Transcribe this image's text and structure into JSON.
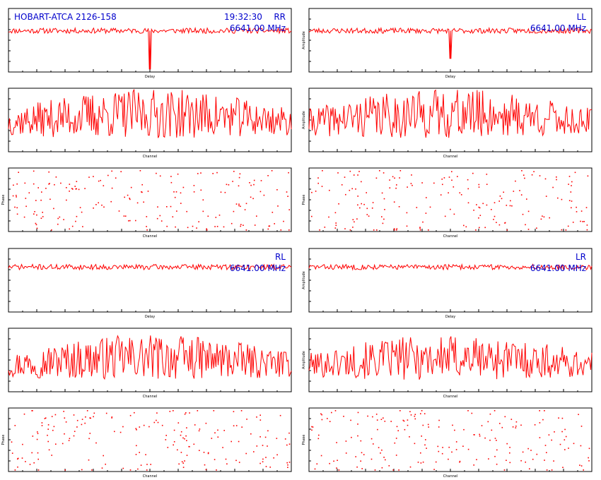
{
  "header": {
    "source": "HOBART-ATCA 2126-158",
    "time": "19:32:30",
    "frequency": "6641.00 MHz"
  },
  "colors": {
    "trace": "#ff0000",
    "overlay_text": "#0000cc",
    "axes": "#000000"
  },
  "chart_data": [
    {
      "id": "rr-delay",
      "type": "line",
      "pol": "RR",
      "xlabel": "Delay",
      "ylabel": "",
      "ylim": [
        0,
        1.2
      ],
      "baseline": 0.78,
      "noise": 0.05,
      "spike": {
        "x": 0.5,
        "y": 0.05
      },
      "seed": 11
    },
    {
      "id": "ll-delay",
      "type": "line",
      "pol": "LL",
      "xlabel": "Delay",
      "ylabel": "Amplitude",
      "ylim": [
        0,
        1.2
      ],
      "baseline": 0.78,
      "noise": 0.05,
      "spike": {
        "x": 0.5,
        "y": 0.25
      },
      "seed": 23
    },
    {
      "id": "rr-channel",
      "type": "line",
      "xlabel": "Channel",
      "ylabel": "",
      "ylim": [
        0,
        3.2
      ],
      "baseline": 1.0,
      "noise": 0.55,
      "seed": 37
    },
    {
      "id": "ll-channel",
      "type": "line",
      "xlabel": "Channel",
      "ylabel": "Amplitude",
      "ylim": [
        0,
        3.2
      ],
      "baseline": 1.0,
      "noise": 0.55,
      "seed": 41
    },
    {
      "id": "rr-phase",
      "type": "scatter",
      "xlabel": "Channel",
      "ylabel": "Phase",
      "ylim": [
        -180,
        180
      ],
      "seed": 53
    },
    {
      "id": "ll-phase",
      "type": "scatter",
      "xlabel": "Channel",
      "ylabel": "Phase",
      "ylim": [
        -180,
        180
      ],
      "seed": 67
    },
    {
      "id": "rl-delay",
      "type": "line",
      "pol": "RL",
      "xlabel": "Delay",
      "ylabel": "",
      "ylim": [
        0,
        1.2
      ],
      "baseline": 0.85,
      "noise": 0.05,
      "seed": 71
    },
    {
      "id": "lr-delay",
      "type": "line",
      "pol": "LR",
      "xlabel": "Delay",
      "ylabel": "Amplitude",
      "ylim": [
        0,
        1.2
      ],
      "baseline": 0.85,
      "noise": 0.05,
      "seed": 83
    },
    {
      "id": "rl-channel",
      "type": "line",
      "xlabel": "Channel",
      "ylabel": "",
      "ylim": [
        0,
        3.2
      ],
      "baseline": 0.9,
      "noise": 0.5,
      "seed": 97
    },
    {
      "id": "lr-channel",
      "type": "line",
      "xlabel": "Channel",
      "ylabel": "Amplitude",
      "ylim": [
        0,
        3.2
      ],
      "baseline": 0.9,
      "noise": 0.5,
      "seed": 101
    },
    {
      "id": "rl-phase",
      "type": "scatter",
      "xlabel": "Channel",
      "ylabel": "Phase",
      "ylim": [
        -180,
        180
      ],
      "seed": 113
    },
    {
      "id": "lr-phase",
      "type": "scatter",
      "xlabel": "Channel",
      "ylabel": "Phase",
      "ylim": [
        -180,
        180
      ],
      "seed": 127
    }
  ]
}
